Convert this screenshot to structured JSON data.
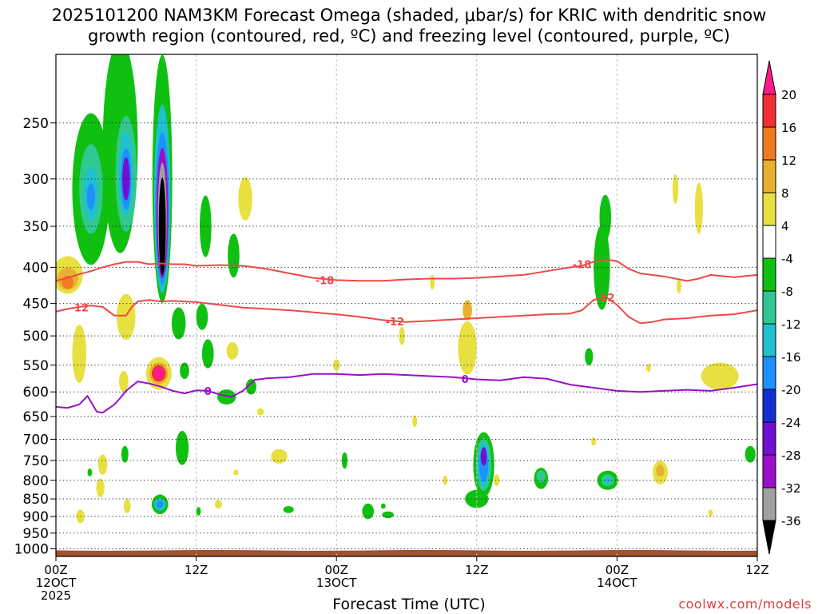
{
  "title_line1": "2025101200 NAM3KM Forecast Omega (shaded, μbar/s) for KRIC with dendritic snow",
  "title_line2": "growth region (contoured, red, ºC) and freezing level (contoured, purple, ºC)",
  "credit": "coolwx.com/models",
  "colors": {
    "red_contour": "#f04848",
    "purple_contour": "#9a10c8",
    "ground": "#a0522d"
  },
  "chart_data": {
    "type": "heatmap",
    "xlabel": "Forecast Time (UTC)",
    "x_ticks": [
      {
        "hour": 0,
        "lines": [
          "00Z",
          "12OCT",
          "2025"
        ]
      },
      {
        "hour": 12,
        "lines": [
          "12Z"
        ]
      },
      {
        "hour": 24,
        "lines": [
          "00Z",
          "13OCT"
        ]
      },
      {
        "hour": 36,
        "lines": [
          "12Z"
        ]
      },
      {
        "hour": 48,
        "lines": [
          "00Z",
          "14OCT"
        ]
      },
      {
        "hour": 60,
        "lines": [
          "12Z"
        ]
      }
    ],
    "xlim": [
      0,
      60
    ],
    "y_ticks": [
      250,
      300,
      350,
      400,
      450,
      500,
      550,
      600,
      650,
      700,
      750,
      800,
      850,
      900,
      950,
      1000
    ],
    "ylim": [
      1025,
      200
    ],
    "y_scale": "log-pressure",
    "grid": true,
    "colorbar": {
      "labels": [
        "20",
        "16",
        "12",
        "8",
        "4",
        "-4",
        "-8",
        "-12",
        "-16",
        "-20",
        "-24",
        "-28",
        "-32",
        "-36"
      ],
      "colors": [
        "#ff1a8c",
        "#f03030",
        "#f07a20",
        "#e8b030",
        "#e8e040",
        "#ffffff",
        "#10c010",
        "#30c890",
        "#20c0d0",
        "#1e90ff",
        "#1530d0",
        "#7010d0",
        "#9a10c8",
        "#a0a0a0",
        "#000000"
      ]
    },
    "contours": [
      {
        "level": "-18",
        "color": "#f04848",
        "points": [
          [
            0,
            418
          ],
          [
            1,
            414
          ],
          [
            2,
            409
          ],
          [
            3,
            405
          ],
          [
            4,
            400
          ],
          [
            5,
            396
          ],
          [
            6,
            393
          ],
          [
            7,
            393
          ],
          [
            8,
            396
          ],
          [
            9,
            395
          ],
          [
            10,
            396
          ],
          [
            11,
            396
          ],
          [
            12,
            398
          ],
          [
            14,
            397
          ],
          [
            16,
            398
          ],
          [
            18,
            402
          ],
          [
            20,
            408
          ],
          [
            22,
            414
          ],
          [
            24,
            417
          ],
          [
            26,
            418
          ],
          [
            28,
            418
          ],
          [
            30,
            416
          ],
          [
            32,
            415
          ],
          [
            34,
            415
          ],
          [
            36,
            414
          ],
          [
            38,
            412
          ],
          [
            40,
            410
          ],
          [
            42,
            405
          ],
          [
            44,
            400
          ],
          [
            45,
            398
          ],
          [
            46,
            393
          ],
          [
            47,
            390
          ],
          [
            48,
            392
          ],
          [
            49,
            402
          ],
          [
            50,
            408
          ],
          [
            52,
            412
          ],
          [
            54,
            418
          ],
          [
            55,
            415
          ],
          [
            56,
            410
          ],
          [
            58,
            413
          ],
          [
            60,
            410
          ]
        ],
        "labels": [
          {
            "x": 23,
            "y": 417
          },
          {
            "x": 45,
            "y": 396
          }
        ]
      },
      {
        "level": "-12",
        "color": "#f04848",
        "points": [
          [
            0,
            462
          ],
          [
            1,
            458
          ],
          [
            2,
            455
          ],
          [
            3,
            453
          ],
          [
            4,
            455
          ],
          [
            5,
            468
          ],
          [
            6,
            468
          ],
          [
            6.5,
            455
          ],
          [
            7,
            447
          ],
          [
            8,
            445
          ],
          [
            9,
            447
          ],
          [
            10,
            446
          ],
          [
            11,
            447
          ],
          [
            12,
            448
          ],
          [
            14,
            452
          ],
          [
            16,
            456
          ],
          [
            18,
            458
          ],
          [
            20,
            460
          ],
          [
            22,
            463
          ],
          [
            24,
            466
          ],
          [
            26,
            470
          ],
          [
            28,
            475
          ],
          [
            30,
            478
          ],
          [
            32,
            476
          ],
          [
            34,
            474
          ],
          [
            36,
            472
          ],
          [
            38,
            470
          ],
          [
            40,
            468
          ],
          [
            42,
            466
          ],
          [
            44,
            465
          ],
          [
            45,
            460
          ],
          [
            46,
            445
          ],
          [
            47,
            440
          ],
          [
            48,
            452
          ],
          [
            49,
            470
          ],
          [
            50,
            480
          ],
          [
            51,
            478
          ],
          [
            52,
            474
          ],
          [
            54,
            472
          ],
          [
            56,
            468
          ],
          [
            58,
            466
          ],
          [
            60,
            460
          ]
        ],
        "labels": [
          {
            "x": 2,
            "y": 456
          },
          {
            "x": 29,
            "y": 477
          },
          {
            "x": 47,
            "y": 441
          }
        ]
      },
      {
        "level": "0",
        "color": "#9a10c8",
        "points": [
          [
            0,
            630
          ],
          [
            1,
            632
          ],
          [
            2,
            625
          ],
          [
            2.7,
            608
          ],
          [
            3.5,
            640
          ],
          [
            4,
            642
          ],
          [
            5,
            625
          ],
          [
            5.5,
            612
          ],
          [
            6,
            598
          ],
          [
            7,
            580
          ],
          [
            8,
            584
          ],
          [
            9,
            590
          ],
          [
            10,
            598
          ],
          [
            11,
            603
          ],
          [
            12,
            597
          ],
          [
            13,
            598
          ],
          [
            14,
            605
          ],
          [
            15,
            610
          ],
          [
            16,
            598
          ],
          [
            17,
            577
          ],
          [
            18,
            574
          ],
          [
            20,
            572
          ],
          [
            22,
            566
          ],
          [
            24,
            566
          ],
          [
            26,
            568
          ],
          [
            28,
            566
          ],
          [
            30,
            568
          ],
          [
            32,
            570
          ],
          [
            34,
            572
          ],
          [
            36,
            576
          ],
          [
            38,
            578
          ],
          [
            40,
            572
          ],
          [
            42,
            575
          ],
          [
            44,
            586
          ],
          [
            46,
            592
          ],
          [
            48,
            598
          ],
          [
            50,
            600
          ],
          [
            52,
            598
          ],
          [
            54,
            596
          ],
          [
            56,
            598
          ],
          [
            58,
            592
          ],
          [
            60,
            585
          ]
        ],
        "labels": [
          {
            "x": 13,
            "y": 598
          },
          {
            "x": 35,
            "y": 575
          }
        ]
      }
    ],
    "blobs": [
      {
        "x": 3.0,
        "p": 310,
        "w": 1.6,
        "hp": 150,
        "c": "#10c010"
      },
      {
        "x": 3.0,
        "p": 310,
        "w": 1.0,
        "hp": 90,
        "c": "#30c890"
      },
      {
        "x": 3.0,
        "p": 315,
        "w": 0.6,
        "hp": 55,
        "c": "#20c0d0"
      },
      {
        "x": 3.0,
        "p": 318,
        "w": 0.35,
        "hp": 28,
        "c": "#1e90ff"
      },
      {
        "x": 5.5,
        "p": 270,
        "w": 1.5,
        "hp": 180,
        "c": "#10c010"
      },
      {
        "x": 6.0,
        "p": 295,
        "w": 0.9,
        "hp": 110,
        "c": "#30c890"
      },
      {
        "x": 6.0,
        "p": 295,
        "w": 0.6,
        "hp": 80,
        "c": "#20c0d0"
      },
      {
        "x": 6.0,
        "p": 300,
        "w": 0.45,
        "hp": 60,
        "c": "#1e90ff"
      },
      {
        "x": 6.0,
        "p": 300,
        "w": 0.32,
        "hp": 42,
        "c": "#7010d0"
      },
      {
        "x": 9.1,
        "p": 300,
        "w": 0.85,
        "hp": 230,
        "c": "#10c010"
      },
      {
        "x": 9.1,
        "p": 320,
        "w": 0.7,
        "hp": 190,
        "c": "#20c0d0"
      },
      {
        "x": 9.1,
        "p": 330,
        "w": 0.6,
        "hp": 160,
        "c": "#1e90ff"
      },
      {
        "x": 9.1,
        "p": 335,
        "w": 0.5,
        "hp": 140,
        "c": "#9a10c8"
      },
      {
        "x": 9.1,
        "p": 340,
        "w": 0.38,
        "hp": 120,
        "c": "#a0a0a0"
      },
      {
        "x": 9.1,
        "p": 350,
        "w": 0.3,
        "hp": 110,
        "c": "#000000"
      },
      {
        "x": 1.0,
        "p": 410,
        "w": 1.3,
        "hp": 50,
        "c": "#e8e040"
      },
      {
        "x": 1.0,
        "p": 415,
        "w": 0.9,
        "hp": 30,
        "c": "#e8b030"
      },
      {
        "x": 1.0,
        "p": 420,
        "w": 0.5,
        "hp": 18,
        "c": "#f07a20"
      },
      {
        "x": 2.0,
        "p": 530,
        "w": 0.6,
        "hp": 100,
        "c": "#e8e040"
      },
      {
        "x": 6.0,
        "p": 470,
        "w": 0.8,
        "hp": 70,
        "c": "#e8e040"
      },
      {
        "x": 8.8,
        "p": 565,
        "w": 1.1,
        "hp": 60,
        "c": "#e8e040"
      },
      {
        "x": 8.8,
        "p": 565,
        "w": 0.8,
        "hp": 40,
        "c": "#e8b030"
      },
      {
        "x": 8.8,
        "p": 565,
        "w": 0.6,
        "hp": 30,
        "c": "#f03030"
      },
      {
        "x": 8.8,
        "p": 565,
        "w": 0.45,
        "hp": 22,
        "c": "#ff1a8c"
      },
      {
        "x": 8.9,
        "p": 865,
        "w": 0.7,
        "hp": 55,
        "c": "#10c010"
      },
      {
        "x": 8.9,
        "p": 865,
        "w": 0.5,
        "hp": 35,
        "c": "#20c0d0"
      },
      {
        "x": 8.9,
        "p": 865,
        "w": 0.3,
        "hp": 20,
        "c": "#1e90ff"
      },
      {
        "x": 10.8,
        "p": 720,
        "w": 0.55,
        "hp": 80,
        "c": "#10c010"
      },
      {
        "x": 10.5,
        "p": 480,
        "w": 0.6,
        "hp": 50,
        "c": "#10c010"
      },
      {
        "x": 12.5,
        "p": 470,
        "w": 0.5,
        "hp": 40,
        "c": "#10c010"
      },
      {
        "x": 12.8,
        "p": 350,
        "w": 0.5,
        "hp": 70,
        "c": "#10c010"
      },
      {
        "x": 13.0,
        "p": 530,
        "w": 0.5,
        "hp": 50,
        "c": "#10c010"
      },
      {
        "x": 15.2,
        "p": 385,
        "w": 0.5,
        "hp": 55,
        "c": "#10c010"
      },
      {
        "x": 16.2,
        "p": 320,
        "w": 0.6,
        "hp": 45,
        "c": "#e8e040"
      },
      {
        "x": 14.6,
        "p": 610,
        "w": 0.8,
        "hp": 30,
        "c": "#10c010"
      },
      {
        "x": 11.0,
        "p": 560,
        "w": 0.4,
        "hp": 30,
        "c": "#10c010"
      },
      {
        "x": 4.0,
        "p": 760,
        "w": 0.4,
        "hp": 50,
        "c": "#e8e040"
      },
      {
        "x": 5.8,
        "p": 580,
        "w": 0.4,
        "hp": 40,
        "c": "#e8e040"
      },
      {
        "x": 5.9,
        "p": 735,
        "w": 0.3,
        "hp": 40,
        "c": "#10c010"
      },
      {
        "x": 2.1,
        "p": 900,
        "w": 0.35,
        "hp": 40,
        "c": "#e8e040"
      },
      {
        "x": 3.8,
        "p": 820,
        "w": 0.35,
        "hp": 50,
        "c": "#e8e040"
      },
      {
        "x": 2.9,
        "p": 780,
        "w": 0.2,
        "hp": 20,
        "c": "#10c010"
      },
      {
        "x": 6.1,
        "p": 870,
        "w": 0.3,
        "hp": 40,
        "c": "#e8e040"
      },
      {
        "x": 12.2,
        "p": 885,
        "w": 0.2,
        "hp": 25,
        "c": "#10c010"
      },
      {
        "x": 13.9,
        "p": 865,
        "w": 0.3,
        "hp": 25,
        "c": "#e8e040"
      },
      {
        "x": 15.4,
        "p": 780,
        "w": 0.2,
        "hp": 15,
        "c": "#e8e040"
      },
      {
        "x": 16.7,
        "p": 590,
        "w": 0.45,
        "hp": 30,
        "c": "#10c010"
      },
      {
        "x": 19.1,
        "p": 740,
        "w": 0.7,
        "hp": 35,
        "c": "#e8e040"
      },
      {
        "x": 15.1,
        "p": 525,
        "w": 0.5,
        "hp": 30,
        "c": "#e8e040"
      },
      {
        "x": 17.5,
        "p": 640,
        "w": 0.3,
        "hp": 15,
        "c": "#e8e040"
      },
      {
        "x": 19.9,
        "p": 880,
        "w": 0.45,
        "hp": 20,
        "c": "#10c010"
      },
      {
        "x": 24.7,
        "p": 750,
        "w": 0.25,
        "hp": 40,
        "c": "#10c010"
      },
      {
        "x": 26.7,
        "p": 885,
        "w": 0.5,
        "hp": 45,
        "c": "#10c010"
      },
      {
        "x": 28.0,
        "p": 870,
        "w": 0.2,
        "hp": 15,
        "c": "#10c010"
      },
      {
        "x": 28.4,
        "p": 895,
        "w": 0.5,
        "hp": 20,
        "c": "#10c010"
      },
      {
        "x": 24.0,
        "p": 550,
        "w": 0.3,
        "hp": 20,
        "c": "#e8e040"
      },
      {
        "x": 29.6,
        "p": 500,
        "w": 0.25,
        "hp": 30,
        "c": "#e8e040"
      },
      {
        "x": 32.2,
        "p": 420,
        "w": 0.2,
        "hp": 20,
        "c": "#e8e040"
      },
      {
        "x": 30.7,
        "p": 660,
        "w": 0.2,
        "hp": 25,
        "c": "#e8e040"
      },
      {
        "x": 33.3,
        "p": 800,
        "w": 0.2,
        "hp": 25,
        "c": "#e8e040"
      },
      {
        "x": 35.2,
        "p": 520,
        "w": 0.8,
        "hp": 90,
        "c": "#e8e040"
      },
      {
        "x": 35.2,
        "p": 460,
        "w": 0.4,
        "hp": 30,
        "c": "#e8b030"
      },
      {
        "x": 36.0,
        "p": 850,
        "w": 1.0,
        "hp": 50,
        "c": "#10c010"
      },
      {
        "x": 36.6,
        "p": 760,
        "w": 0.9,
        "hp": 160,
        "c": "#10c010"
      },
      {
        "x": 36.6,
        "p": 760,
        "w": 0.65,
        "hp": 130,
        "c": "#30c890"
      },
      {
        "x": 36.6,
        "p": 760,
        "w": 0.5,
        "hp": 110,
        "c": "#20c0d0"
      },
      {
        "x": 36.6,
        "p": 760,
        "w": 0.38,
        "hp": 85,
        "c": "#1e90ff"
      },
      {
        "x": 36.6,
        "p": 740,
        "w": 0.25,
        "hp": 45,
        "c": "#7010d0"
      },
      {
        "x": 37.7,
        "p": 800,
        "w": 0.25,
        "hp": 30,
        "c": "#e8e040"
      },
      {
        "x": 41.5,
        "p": 795,
        "w": 0.6,
        "hp": 55,
        "c": "#10c010"
      },
      {
        "x": 41.5,
        "p": 790,
        "w": 0.4,
        "hp": 30,
        "c": "#30c890"
      },
      {
        "x": 45.6,
        "p": 535,
        "w": 0.35,
        "hp": 30,
        "c": "#10c010"
      },
      {
        "x": 46.7,
        "p": 400,
        "w": 0.7,
        "hp": 110,
        "c": "#10c010"
      },
      {
        "x": 47.0,
        "p": 340,
        "w": 0.5,
        "hp": 50,
        "c": "#10c010"
      },
      {
        "x": 46.0,
        "p": 705,
        "w": 0.2,
        "hp": 20,
        "c": "#e8e040"
      },
      {
        "x": 47.2,
        "p": 800,
        "w": 0.9,
        "hp": 50,
        "c": "#10c010"
      },
      {
        "x": 47.2,
        "p": 800,
        "w": 0.55,
        "hp": 30,
        "c": "#30c890"
      },
      {
        "x": 47.2,
        "p": 800,
        "w": 0.3,
        "hp": 18,
        "c": "#20c0d0"
      },
      {
        "x": 50.7,
        "p": 555,
        "w": 0.2,
        "hp": 15,
        "c": "#e8e040"
      },
      {
        "x": 51.7,
        "p": 780,
        "w": 0.65,
        "hp": 60,
        "c": "#e8e040"
      },
      {
        "x": 51.7,
        "p": 775,
        "w": 0.35,
        "hp": 30,
        "c": "#e8b030"
      },
      {
        "x": 53.3,
        "p": 425,
        "w": 0.2,
        "hp": 20,
        "c": "#e8e040"
      },
      {
        "x": 55.0,
        "p": 330,
        "w": 0.35,
        "hp": 55,
        "c": "#e8e040"
      },
      {
        "x": 53.0,
        "p": 310,
        "w": 0.25,
        "hp": 30,
        "c": "#e8e040"
      },
      {
        "x": 56.8,
        "p": 570,
        "w": 1.6,
        "hp": 50,
        "c": "#e8e040"
      },
      {
        "x": 56.0,
        "p": 890,
        "w": 0.2,
        "hp": 20,
        "c": "#e8e040"
      },
      {
        "x": 59.4,
        "p": 735,
        "w": 0.45,
        "hp": 40,
        "c": "#10c010"
      }
    ]
  }
}
